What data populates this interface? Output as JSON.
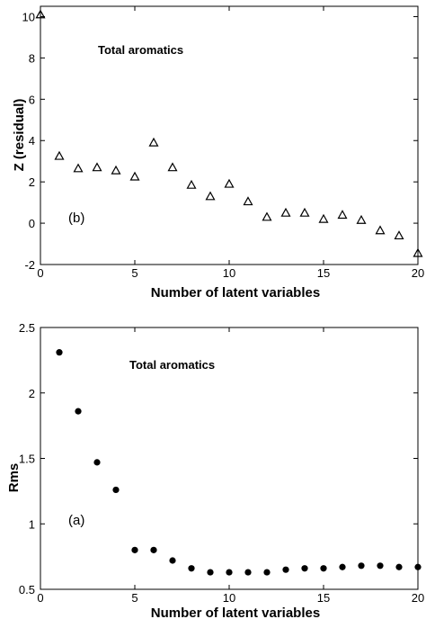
{
  "chart_data": [
    {
      "type": "scatter",
      "marker": "open-triangle",
      "xlabel": "Number of latent variables",
      "ylabel": "Z (residual)",
      "xlim": [
        0,
        20
      ],
      "ylim": [
        -2,
        10.5
      ],
      "xticks": [
        0,
        5,
        10,
        15,
        20
      ],
      "yticks": [
        -2,
        0,
        2,
        4,
        6,
        8,
        10
      ],
      "annotations": [
        "Total aromatics",
        "(b)"
      ],
      "grid": false,
      "x": [
        0,
        1,
        2,
        3,
        4,
        5,
        6,
        7,
        8,
        9,
        10,
        11,
        12,
        13,
        14,
        15,
        16,
        17,
        18,
        19,
        20
      ],
      "y": [
        10.1,
        3.25,
        2.65,
        2.7,
        2.55,
        2.25,
        3.9,
        2.7,
        1.85,
        1.3,
        1.9,
        1.05,
        0.3,
        0.5,
        0.5,
        0.2,
        0.4,
        0.15,
        -0.35,
        -0.6,
        -1.45
      ]
    },
    {
      "type": "scatter",
      "marker": "filled-dot",
      "xlabel": "Number of latent variables",
      "ylabel": "Rms",
      "xlim": [
        0,
        20
      ],
      "ylim": [
        0.5,
        2.5
      ],
      "xticks": [
        0,
        5,
        10,
        15,
        20
      ],
      "yticks": [
        0.5,
        1,
        1.5,
        2,
        2.5
      ],
      "annotations": [
        "Total aromatics",
        "(a)"
      ],
      "grid": false,
      "x": [
        1,
        2,
        3,
        4,
        5,
        6,
        7,
        8,
        9,
        10,
        11,
        12,
        13,
        14,
        15,
        16,
        17,
        18,
        19,
        20
      ],
      "y": [
        2.31,
        1.86,
        1.47,
        1.26,
        0.8,
        0.8,
        0.72,
        0.66,
        0.63,
        0.63,
        0.63,
        0.63,
        0.65,
        0.66,
        0.66,
        0.67,
        0.68,
        0.68,
        0.67,
        0.67
      ]
    }
  ]
}
